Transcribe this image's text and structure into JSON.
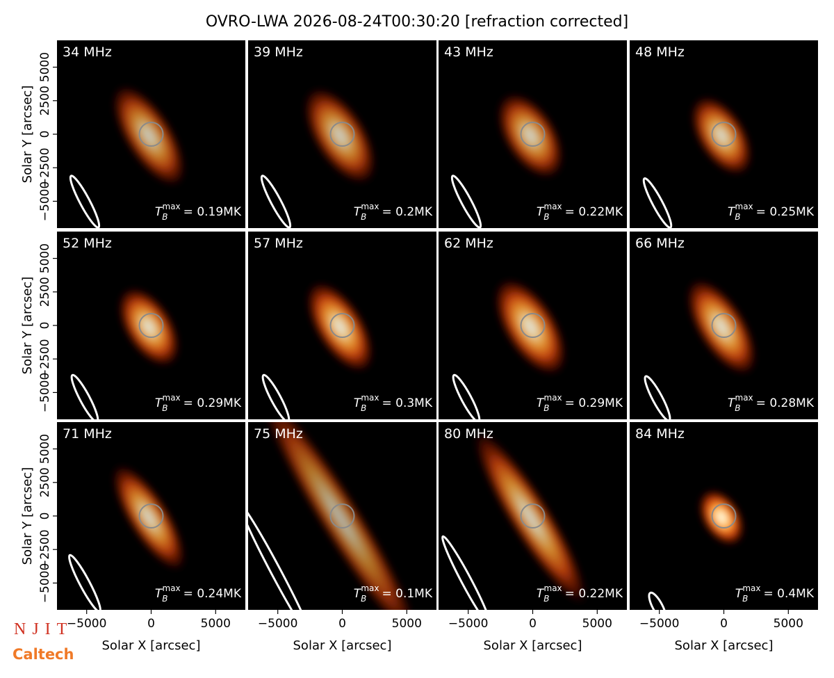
{
  "chart_data": {
    "type": "image-grid",
    "title": "OVRO-LWA 2026-08-24T00:30:20 [refraction corrected]",
    "xlabel": "Solar X [arcsec]",
    "ylabel": "Solar Y [arcsec]",
    "xlim": [
      -7300,
      7300
    ],
    "ylim": [
      -7000,
      7000
    ],
    "xticks": [
      {
        "value": -5000,
        "label": "−5000"
      },
      0,
      5000
    ],
    "yticks": [
      {
        "value": -5000,
        "label": "−5000"
      },
      {
        "value": -2500,
        "label": "−2500"
      },
      0,
      2500,
      5000
    ],
    "tb_symbol": {
      "base": "T",
      "sub": "B",
      "sup": "max"
    },
    "panels": [
      {
        "title": "34 MHz",
        "tb_max": 0.19,
        "tb_max_label": "= 0.19MK"
      },
      {
        "title": "39 MHz",
        "tb_max": 0.2,
        "tb_max_label": "= 0.2MK"
      },
      {
        "title": "43 MHz",
        "tb_max": 0.22,
        "tb_max_label": "= 0.22MK"
      },
      {
        "title": "48 MHz",
        "tb_max": 0.25,
        "tb_max_label": "= 0.25MK"
      },
      {
        "title": "52 MHz",
        "tb_max": 0.29,
        "tb_max_label": "= 0.29MK"
      },
      {
        "title": "57 MHz",
        "tb_max": 0.3,
        "tb_max_label": "= 0.3MK"
      },
      {
        "title": "62 MHz",
        "tb_max": 0.29,
        "tb_max_label": "= 0.29MK"
      },
      {
        "title": "66 MHz",
        "tb_max": 0.28,
        "tb_max_label": "= 0.28MK"
      },
      {
        "title": "71 MHz",
        "tb_max": 0.24,
        "tb_max_label": "= 0.24MK"
      },
      {
        "title": "75 MHz",
        "tb_max": 0.1,
        "tb_max_label": "= 0.1MK"
      },
      {
        "title": "80 MHz",
        "tb_max": 0.22,
        "tb_max_label": "= 0.22MK"
      },
      {
        "title": "84 MHz",
        "tb_max": 0.4,
        "tb_max_label": "= 0.4MK"
      }
    ],
    "logos": [
      "NJIT",
      "Caltech"
    ]
  }
}
